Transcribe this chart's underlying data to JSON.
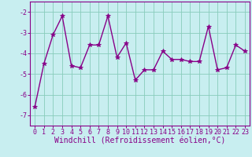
{
  "x": [
    0,
    1,
    2,
    3,
    4,
    5,
    6,
    7,
    8,
    9,
    10,
    11,
    12,
    13,
    14,
    15,
    16,
    17,
    18,
    19,
    20,
    21,
    22,
    23
  ],
  "y": [
    -6.6,
    -4.5,
    -3.1,
    -2.2,
    -4.6,
    -4.7,
    -3.6,
    -3.6,
    -2.2,
    -4.2,
    -3.5,
    -5.3,
    -4.8,
    -4.8,
    -3.9,
    -4.3,
    -4.3,
    -4.4,
    -4.4,
    -2.7,
    -4.8,
    -4.7,
    -3.6,
    -3.9
  ],
  "line_color": "#880088",
  "marker": "*",
  "marker_size": 4,
  "bg_color": "#c8eef0",
  "grid_color": "#88ccbb",
  "xlabel": "Windchill (Refroidissement éolien,°C)",
  "ylim": [
    -7.5,
    -1.5
  ],
  "yticks": [
    -7,
    -6,
    -5,
    -4,
    -3,
    -2
  ],
  "xlim": [
    -0.5,
    23.5
  ],
  "xticks": [
    0,
    1,
    2,
    3,
    4,
    5,
    6,
    7,
    8,
    9,
    10,
    11,
    12,
    13,
    14,
    15,
    16,
    17,
    18,
    19,
    20,
    21,
    22,
    23
  ],
  "tick_fontsize": 6,
  "xlabel_fontsize": 7
}
